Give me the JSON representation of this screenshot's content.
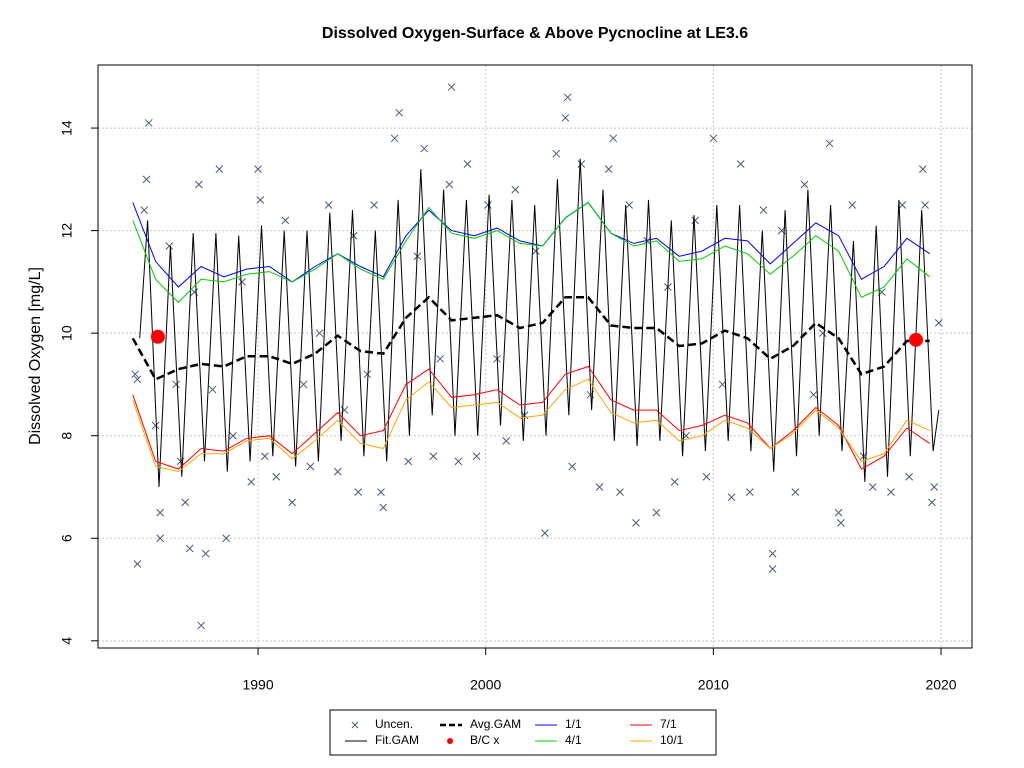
{
  "chart_data": {
    "type": "line",
    "title": "Dissolved Oxygen-Surface & Above Pycnocline at LE3.6",
    "y_label": "Dissolved Oxygen [mg/L]",
    "xlim": [
      1982.97,
      2021.36
    ],
    "ylim": [
      3.86,
      15.23
    ],
    "xticks": [
      1990,
      2000,
      2010,
      2020
    ],
    "yticks": [
      4,
      6,
      8,
      10,
      12,
      14
    ],
    "grid": true,
    "legend": "bottom",
    "series": [
      {
        "name": "Uncen.",
        "color": "#4a5a78",
        "style": "points",
        "x": [
          1984.6,
          1984.7,
          1984.7,
          1985.0,
          1985.1,
          1985.2,
          1985.5,
          1985.7,
          1985.7,
          1986.1,
          1986.4,
          1986.6,
          1986.8,
          1987.0,
          1987.2,
          1987.4,
          1987.5,
          1987.7,
          1988.0,
          1988.3,
          1988.6,
          1988.9,
          1989.3,
          1989.7,
          1990.0,
          1990.1,
          1990.3,
          1990.8,
          1991.2,
          1991.5,
          1992.0,
          1992.3,
          1992.7,
          1993.1,
          1993.5,
          1993.8,
          1994.2,
          1994.4,
          1994.8,
          1995.1,
          1995.4,
          1995.5,
          1996.0,
          1996.2,
          1996.6,
          1997.0,
          1997.3,
          1997.7,
          1998.0,
          1998.4,
          1998.5,
          1998.8,
          1999.2,
          1999.6,
          2000.1,
          2000.5,
          2000.9,
          2001.3,
          2001.7,
          2002.2,
          2002.6,
          2003.1,
          2003.5,
          2003.6,
          2003.8,
          2004.2,
          2004.6,
          2005.0,
          2005.4,
          2005.6,
          2005.9,
          2006.3,
          2006.6,
          2007.1,
          2007.5,
          2008.0,
          2008.3,
          2008.8,
          2009.2,
          2009.7,
          2010.0,
          2010.4,
          2010.8,
          2011.2,
          2011.6,
          2012.2,
          2012.6,
          2012.6,
          2013.0,
          2013.6,
          2014.0,
          2014.4,
          2014.8,
          2015.1,
          2015.5,
          2015.6,
          2016.1,
          2016.6,
          2017.0,
          2017.4,
          2017.8,
          2018.3,
          2018.6,
          2018.9,
          2019.2,
          2019.3,
          2019.6,
          2019.7,
          2019.9
        ],
        "values": [
          9.2,
          9.1,
          5.5,
          12.4,
          13.0,
          14.1,
          8.2,
          6.5,
          6.0,
          11.7,
          9.0,
          7.5,
          6.7,
          5.8,
          10.8,
          12.9,
          4.3,
          5.7,
          8.9,
          13.2,
          6.0,
          8.0,
          11.0,
          7.1,
          13.2,
          12.6,
          7.6,
          7.2,
          12.2,
          6.7,
          9.0,
          7.4,
          10.0,
          12.5,
          7.3,
          8.5,
          11.9,
          6.9,
          9.2,
          12.5,
          6.9,
          6.6,
          13.8,
          14.3,
          7.5,
          11.5,
          13.6,
          7.6,
          9.5,
          12.9,
          14.8,
          7.5,
          13.3,
          7.6,
          12.5,
          9.5,
          7.9,
          12.8,
          8.4,
          11.6,
          6.1,
          13.5,
          14.2,
          14.6,
          7.4,
          13.3,
          8.8,
          7.0,
          13.2,
          13.8,
          6.9,
          12.5,
          6.3,
          11.8,
          6.5,
          10.9,
          7.1,
          8.0,
          12.2,
          7.2,
          13.8,
          9.0,
          6.8,
          13.3,
          6.9,
          12.4,
          5.7,
          5.4,
          12.0,
          6.9,
          12.9,
          8.8,
          10.0,
          13.7,
          6.5,
          6.3,
          12.5,
          7.6,
          7.0,
          10.8,
          6.9,
          12.5,
          7.2,
          9.9,
          13.2,
          12.5,
          6.7,
          7.0,
          10.2
        ]
      },
      {
        "name": "Fit.GAM",
        "color": "#000000",
        "style": "line",
        "x": [
          1984.8,
          1985.15,
          1985.65,
          1986.15,
          1986.65,
          1987.15,
          1987.65,
          1988.15,
          1988.65,
          1989.15,
          1989.65,
          1990.15,
          1990.65,
          1991.15,
          1991.65,
          1992.15,
          1992.65,
          1993.15,
          1993.65,
          1994.15,
          1994.65,
          1995.15,
          1995.65,
          1996.15,
          1996.65,
          1997.15,
          1997.65,
          1998.15,
          1998.65,
          1999.15,
          1999.65,
          2000.15,
          2000.65,
          2001.15,
          2001.65,
          2002.15,
          2002.65,
          2003.15,
          2003.65,
          2004.15,
          2004.65,
          2005.15,
          2005.65,
          2006.15,
          2006.65,
          2007.15,
          2007.65,
          2008.15,
          2008.65,
          2009.15,
          2009.65,
          2010.15,
          2010.65,
          2011.15,
          2011.65,
          2012.15,
          2012.65,
          2013.15,
          2013.65,
          2014.15,
          2014.65,
          2015.15,
          2015.65,
          2016.15,
          2016.65,
          2017.15,
          2017.65,
          2018.15,
          2018.65,
          2019.15,
          2019.65,
          2019.9
        ],
        "values": [
          9.9,
          12.2,
          7.0,
          11.7,
          7.2,
          11.95,
          7.5,
          11.95,
          7.3,
          11.9,
          7.5,
          12.1,
          7.6,
          12.0,
          7.4,
          12.0,
          7.5,
          12.35,
          7.9,
          12.4,
          7.6,
          12.0,
          7.5,
          12.6,
          8.0,
          13.2,
          8.4,
          12.8,
          8.0,
          12.6,
          8.0,
          12.7,
          8.2,
          12.6,
          7.9,
          12.5,
          8.0,
          13.0,
          8.4,
          13.4,
          8.5,
          12.8,
          7.9,
          12.5,
          7.8,
          12.6,
          7.9,
          12.2,
          7.6,
          12.3,
          7.7,
          12.5,
          7.9,
          12.5,
          7.7,
          12.0,
          7.3,
          12.4,
          7.6,
          12.8,
          8.0,
          12.5,
          7.7,
          11.8,
          7.1,
          12.1,
          7.2,
          12.6,
          7.6,
          12.4,
          7.7,
          8.5
        ]
      },
      {
        "name": "Avg.GAM",
        "color": "#000000",
        "style": "dashed",
        "x": [
          1984.5,
          1985.5,
          1986.5,
          1987.5,
          1988.5,
          1989.5,
          1990.5,
          1991.5,
          1992.5,
          1993.5,
          1994.5,
          1995.5,
          1996.5,
          1997.5,
          1998.5,
          1999.5,
          2000.5,
          2001.5,
          2002.5,
          2003.5,
          2004.5,
          2005.5,
          2006.5,
          2007.5,
          2008.5,
          2009.5,
          2010.5,
          2011.5,
          2012.5,
          2013.5,
          2014.5,
          2015.5,
          2016.5,
          2017.5,
          2018.5,
          2019.5
        ],
        "values": [
          9.9,
          9.1,
          9.3,
          9.4,
          9.35,
          9.55,
          9.55,
          9.4,
          9.6,
          9.95,
          9.65,
          9.6,
          10.3,
          10.7,
          10.25,
          10.3,
          10.35,
          10.1,
          10.2,
          10.7,
          10.7,
          10.15,
          10.1,
          10.1,
          9.75,
          9.8,
          10.05,
          9.9,
          9.5,
          9.75,
          10.2,
          9.9,
          9.2,
          9.35,
          9.85,
          9.85
        ]
      },
      {
        "name": "B/C x",
        "color": "#ff0000",
        "style": "dots",
        "x": [
          1985.6,
          2018.9
        ],
        "values": [
          9.93,
          9.87
        ]
      },
      {
        "name": "1/1",
        "color": "#0000ff",
        "style": "line",
        "x": [
          1984.5,
          1985.5,
          1986.5,
          1987.5,
          1988.5,
          1989.5,
          1990.5,
          1991.5,
          1992.5,
          1993.5,
          1994.5,
          1995.5,
          1996.5,
          1997.5,
          1998.5,
          1999.5,
          2000.5,
          2001.5,
          2002.5,
          2003.5,
          2004.5,
          2005.5,
          2006.5,
          2007.5,
          2008.5,
          2009.5,
          2010.5,
          2011.5,
          2012.5,
          2013.5,
          2014.5,
          2015.5,
          2016.5,
          2017.5,
          2018.5,
          2019.5
        ],
        "values": [
          12.55,
          11.4,
          10.9,
          11.3,
          11.1,
          11.25,
          11.3,
          11.0,
          11.3,
          11.55,
          11.3,
          11.1,
          11.9,
          12.4,
          12.0,
          11.9,
          12.05,
          11.8,
          11.7,
          12.25,
          12.55,
          11.95,
          11.75,
          11.85,
          11.5,
          11.6,
          11.85,
          11.8,
          11.35,
          11.75,
          12.15,
          11.9,
          11.05,
          11.3,
          11.85,
          11.55
        ]
      },
      {
        "name": "4/1",
        "color": "#00cc00",
        "style": "line",
        "x": [
          1984.5,
          1985.5,
          1986.5,
          1987.5,
          1988.5,
          1989.5,
          1990.5,
          1991.5,
          1992.5,
          1993.5,
          1994.5,
          1995.5,
          1996.5,
          1997.5,
          1998.5,
          1999.5,
          2000.5,
          2001.5,
          2002.5,
          2003.5,
          2004.5,
          2005.5,
          2006.5,
          2007.5,
          2008.5,
          2009.5,
          2010.5,
          2011.5,
          2012.5,
          2013.5,
          2014.5,
          2015.5,
          2016.5,
          2017.5,
          2018.5,
          2019.5
        ],
        "values": [
          12.2,
          11.05,
          10.6,
          11.05,
          11.0,
          11.15,
          11.2,
          11.0,
          11.25,
          11.55,
          11.25,
          11.05,
          11.8,
          12.45,
          11.95,
          11.85,
          12.0,
          11.75,
          11.7,
          12.25,
          12.55,
          11.95,
          11.7,
          11.8,
          11.4,
          11.45,
          11.7,
          11.55,
          11.15,
          11.5,
          11.9,
          11.6,
          10.7,
          10.9,
          11.45,
          11.1
        ]
      },
      {
        "name": "7/1",
        "color": "#ff0000",
        "style": "line",
        "x": [
          1984.5,
          1985.5,
          1986.5,
          1987.5,
          1988.5,
          1989.5,
          1990.5,
          1991.5,
          1992.5,
          1993.5,
          1994.5,
          1995.5,
          1996.5,
          1997.5,
          1998.5,
          1999.5,
          2000.5,
          2001.5,
          2002.5,
          2003.5,
          2004.5,
          2005.5,
          2006.5,
          2007.5,
          2008.5,
          2009.5,
          2010.5,
          2011.5,
          2012.5,
          2013.5,
          2014.5,
          2015.5,
          2016.5,
          2017.5,
          2018.5,
          2019.5
        ],
        "values": [
          8.8,
          7.5,
          7.35,
          7.75,
          7.7,
          7.95,
          8.0,
          7.65,
          8.05,
          8.45,
          8.0,
          8.1,
          9.0,
          9.3,
          8.75,
          8.8,
          8.9,
          8.6,
          8.65,
          9.2,
          9.35,
          8.7,
          8.5,
          8.5,
          8.1,
          8.2,
          8.4,
          8.25,
          7.75,
          8.1,
          8.55,
          8.2,
          7.35,
          7.6,
          8.15,
          7.85
        ]
      },
      {
        "name": "10/1",
        "color": "#ffa500",
        "style": "line",
        "x": [
          1984.5,
          1985.5,
          1986.5,
          1987.5,
          1988.5,
          1989.5,
          1990.5,
          1991.5,
          1992.5,
          1993.5,
          1994.5,
          1995.5,
          1996.5,
          1997.5,
          1998.5,
          1999.5,
          2000.5,
          2001.5,
          2002.5,
          2003.5,
          2004.5,
          2005.5,
          2006.5,
          2007.5,
          2008.5,
          2009.5,
          2010.5,
          2011.5,
          2012.5,
          2013.5,
          2014.5,
          2015.5,
          2016.5,
          2017.5,
          2018.5,
          2019.5
        ],
        "values": [
          8.7,
          7.4,
          7.3,
          7.65,
          7.65,
          7.9,
          7.95,
          7.55,
          7.9,
          8.3,
          7.85,
          7.75,
          8.7,
          9.05,
          8.55,
          8.6,
          8.65,
          8.35,
          8.4,
          8.9,
          9.1,
          8.45,
          8.25,
          8.3,
          7.9,
          8.0,
          8.3,
          8.15,
          7.75,
          8.05,
          8.5,
          8.15,
          7.5,
          7.65,
          8.3,
          8.1
        ]
      }
    ]
  }
}
